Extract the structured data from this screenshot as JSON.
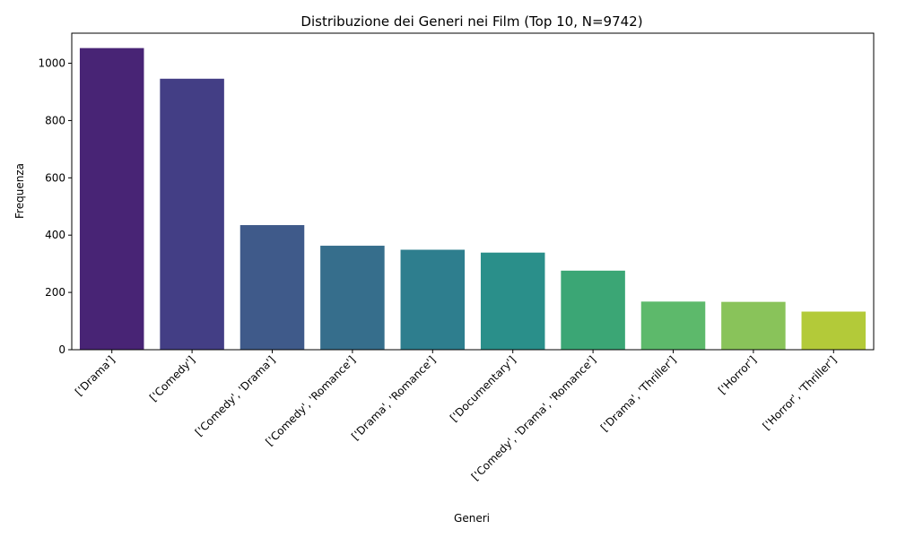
{
  "chart_data": {
    "type": "bar",
    "title": "Distribuzione dei Generi nei Film (Top 10, N=9742)",
    "xlabel": "Generi",
    "ylabel": "Frequenza",
    "categories": [
      "['Drama']",
      "['Comedy']",
      "['Comedy', 'Drama']",
      "['Comedy', 'Romance']",
      "['Drama', 'Romance']",
      "['Documentary']",
      "['Comedy', 'Drama', 'Romance']",
      "['Drama', 'Thriller']",
      "['Horror']",
      "['Horror', 'Thriller']"
    ],
    "values": [
      1053,
      946,
      435,
      363,
      349,
      339,
      276,
      168,
      167,
      133
    ],
    "colors": [
      "#482475",
      "#433e85",
      "#3f5a8a",
      "#366e8c",
      "#2e7e8e",
      "#2a8f8a",
      "#3ba675",
      "#5db96b",
      "#89c35a",
      "#b3ca39"
    ],
    "ylim": [
      0,
      1105
    ],
    "yticks": [
      0,
      200,
      400,
      600,
      800,
      1000
    ],
    "grid": false,
    "legend": "none"
  }
}
